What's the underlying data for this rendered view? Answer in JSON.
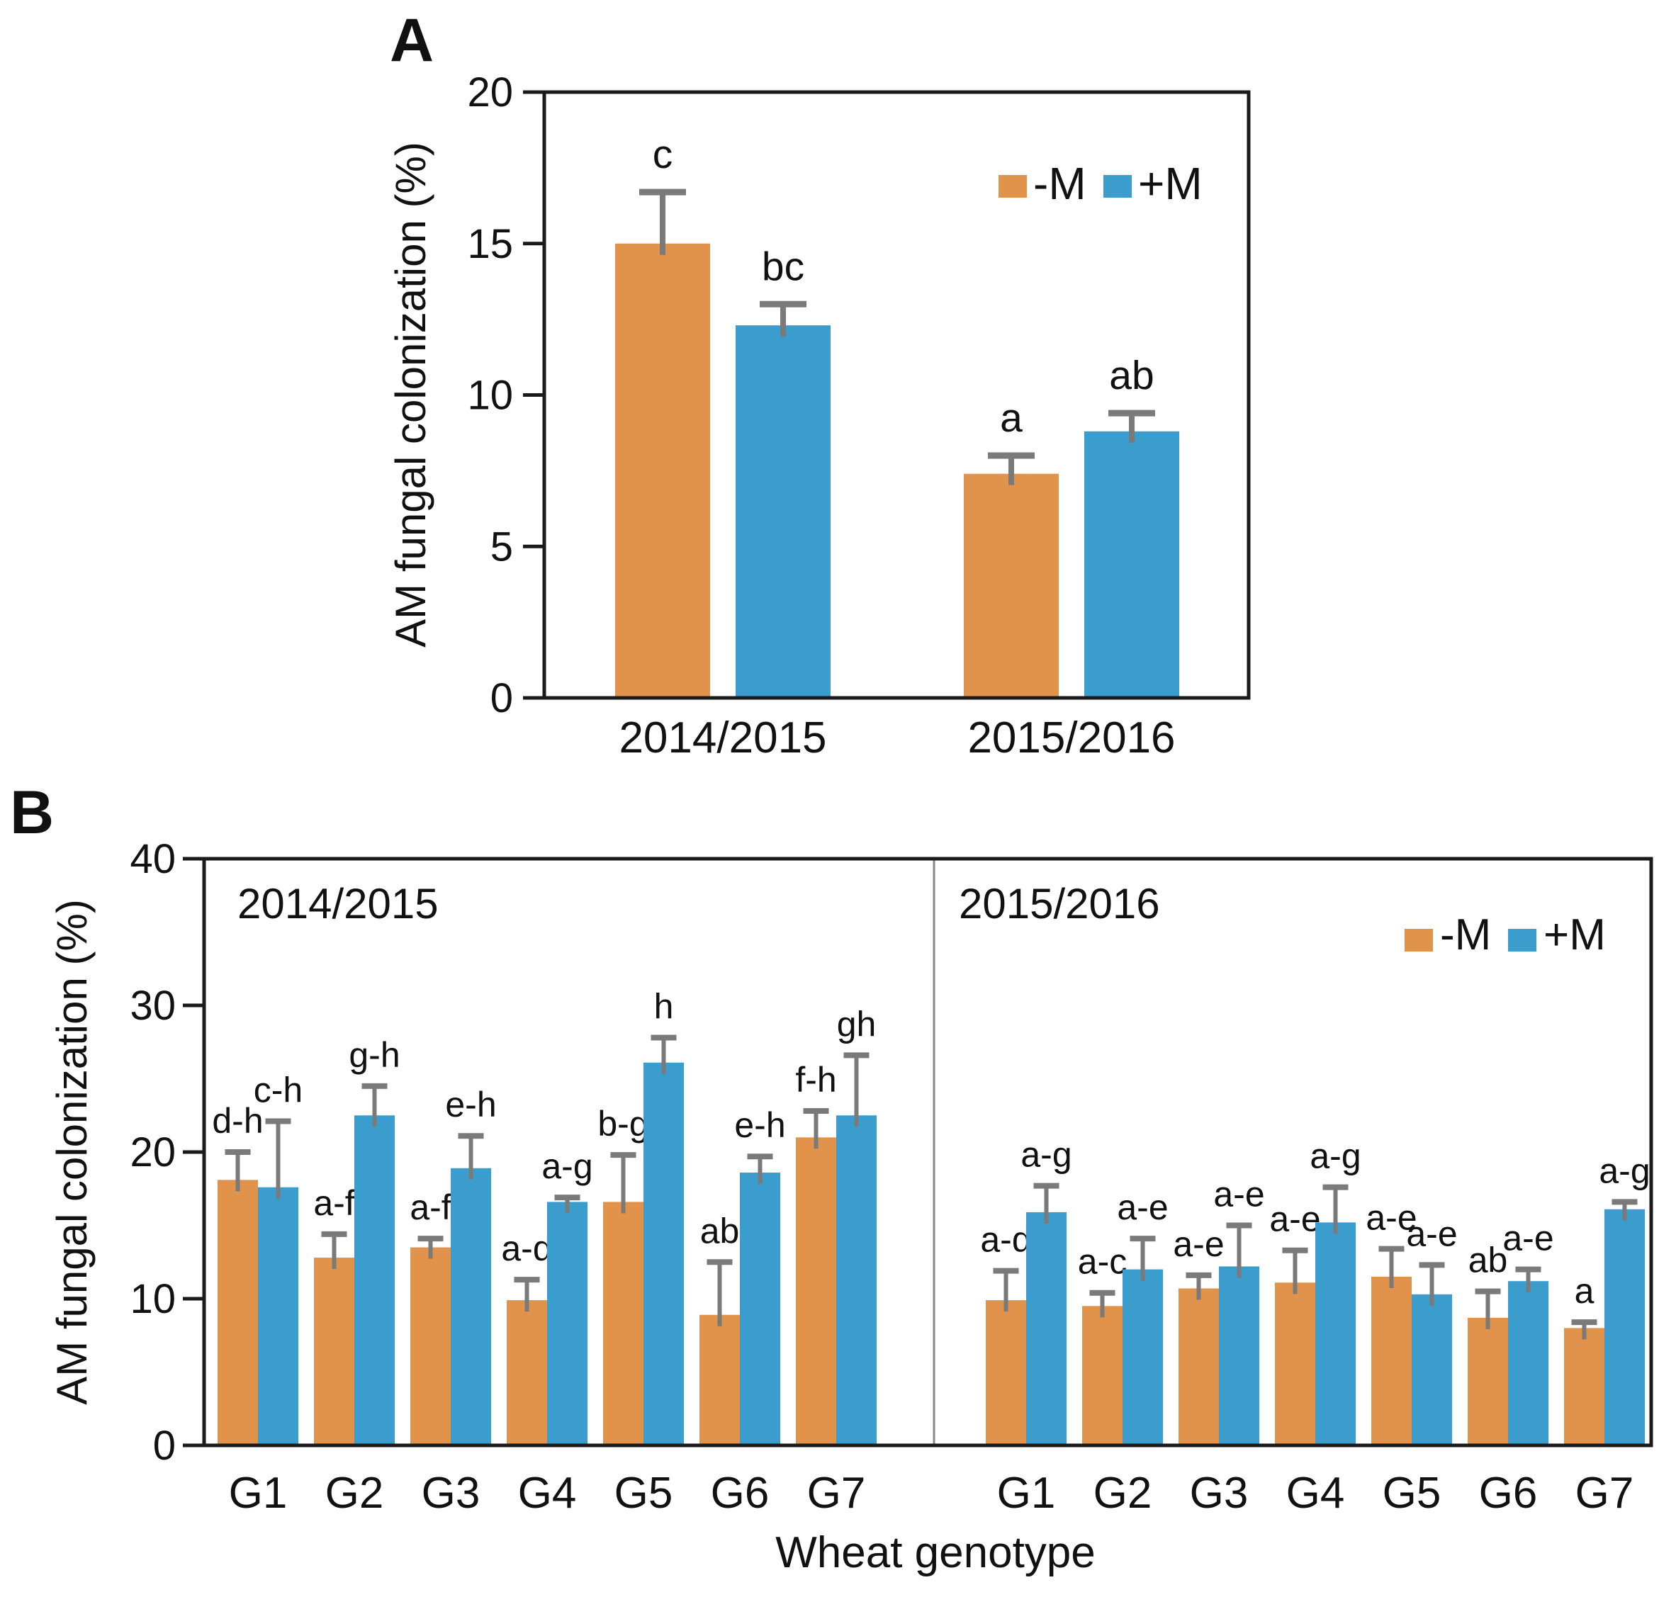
{
  "figure": {
    "panels": [
      {
        "label": "A"
      },
      {
        "label": "B"
      }
    ]
  },
  "colors": {
    "minus_m": "#E2934B",
    "plus_m": "#3A9DCE",
    "error_bar": "#7A7A7A",
    "axis": "#1A1A1A",
    "divider": "#8A8A8A",
    "text": "#111111",
    "background": "#FFFFFF"
  },
  "legend": {
    "items": [
      {
        "label": "-M",
        "color_key": "minus_m"
      },
      {
        "label": "+M",
        "color_key": "plus_m"
      }
    ]
  },
  "chart_data": [
    {
      "id": "A",
      "type": "bar",
      "title": "",
      "ylabel": "AM fungal colonization (%)",
      "xlabel": "",
      "categories": [
        "2014/2015",
        "2015/2016"
      ],
      "series": [
        {
          "name": "-M",
          "color_key": "minus_m",
          "values": [
            15.0,
            7.4
          ],
          "errors": [
            1.7,
            0.6
          ],
          "sig_letters": [
            "c",
            "a"
          ]
        },
        {
          "name": "+M",
          "color_key": "plus_m",
          "values": [
            12.3,
            8.8
          ],
          "errors": [
            0.7,
            0.6
          ],
          "sig_letters": [
            "bc",
            "ab"
          ]
        }
      ],
      "ylim": [
        0,
        20
      ],
      "ytick_step": 5,
      "grid": false,
      "legend_position": "top-right"
    },
    {
      "id": "B",
      "type": "bar",
      "title": "",
      "ylabel": "AM fungal colonization (%)",
      "xlabel": "Wheat genotype",
      "categories": [
        "G1",
        "G2",
        "G3",
        "G4",
        "G5",
        "G6",
        "G7"
      ],
      "sub_panels": [
        {
          "year": "2014/2015",
          "series": [
            {
              "name": "-M",
              "color_key": "minus_m",
              "values": [
                18.1,
                12.8,
                13.5,
                9.9,
                16.6,
                8.9,
                21.0
              ],
              "errors": [
                1.9,
                1.6,
                0.6,
                1.4,
                3.2,
                3.6,
                1.8
              ],
              "sig_letters": [
                "d-h",
                "a-f",
                "a-f",
                "a-d",
                "b-g",
                "ab",
                "f-h"
              ]
            },
            {
              "name": "+M",
              "color_key": "plus_m",
              "values": [
                17.6,
                22.5,
                18.9,
                16.6,
                26.1,
                18.6,
                22.5
              ],
              "errors": [
                4.5,
                2.0,
                2.2,
                0.3,
                1.7,
                1.1,
                4.1
              ],
              "sig_letters": [
                "c-h",
                "g-h",
                "e-h",
                "a-g",
                "h",
                "e-h",
                "gh"
              ]
            }
          ]
        },
        {
          "year": "2015/2016",
          "series": [
            {
              "name": "-M",
              "color_key": "minus_m",
              "values": [
                9.9,
                9.5,
                10.7,
                11.1,
                11.5,
                8.7,
                8.0
              ],
              "errors": [
                2.0,
                0.9,
                0.9,
                2.2,
                1.9,
                1.8,
                0.4
              ],
              "sig_letters": [
                "a-d",
                "a-c",
                "a-e",
                "a-e",
                "a-e",
                "ab",
                "a"
              ]
            },
            {
              "name": "+M",
              "color_key": "plus_m",
              "values": [
                15.9,
                12.0,
                12.2,
                15.2,
                10.3,
                11.2,
                16.1
              ],
              "errors": [
                1.8,
                2.1,
                2.8,
                2.4,
                2.0,
                0.8,
                0.5
              ],
              "sig_letters": [
                "a-g",
                "a-e",
                "a-e",
                "a-g",
                "a-e",
                "a-e",
                "a-g"
              ]
            }
          ]
        }
      ],
      "ylim": [
        0,
        40
      ],
      "ytick_step": 10,
      "grid": false,
      "legend_position": "top-right"
    }
  ]
}
